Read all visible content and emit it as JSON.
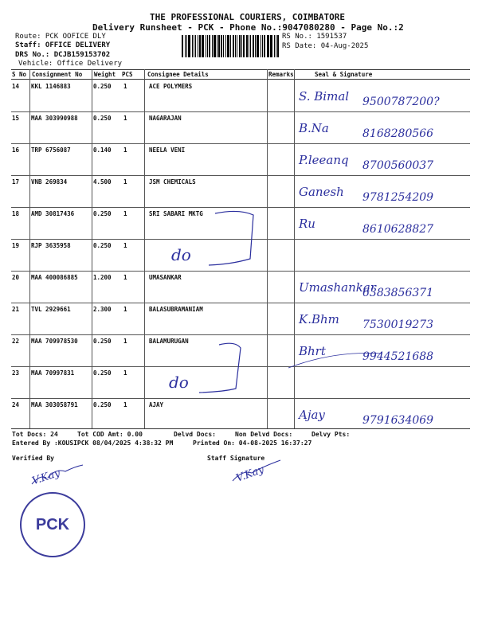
{
  "header": {
    "company": "THE PROFESSIONAL COURIERS, COIMBATORE",
    "subtitle": "Delivery Runsheet - PCK - Phone No.:9047080280 - Page No.:2",
    "route": "Route: PCK OOFICE DLY",
    "staff": "Staff: OFFICE DELIVERY",
    "drs_no": "DRS No.: DCJB159153702",
    "vehicle": "Vehicle: Office Delivery",
    "rs_no": "RS No.: 1591537",
    "rs_date": "RS Date: 04-Aug-2025"
  },
  "table": {
    "columns": [
      "S No",
      "Consignment No",
      "Weight",
      "PCS",
      "Consignee Details",
      "Remarks",
      "Seal & Signature"
    ],
    "rows": [
      {
        "sno": "14",
        "consignment": "KKL 1146883",
        "weight": "0.250",
        "pcs": "1",
        "consignee": "ACE POLYMERS",
        "sign": "S. Bimal",
        "phone": "9500787200?"
      },
      {
        "sno": "15",
        "consignment": "MAA 303990988",
        "weight": "0.250",
        "pcs": "1",
        "consignee": "NAGARAJAN",
        "sign": "B.Na",
        "phone": "8168280566"
      },
      {
        "sno": "16",
        "consignment": "TRP 6756087",
        "weight": "0.140",
        "pcs": "1",
        "consignee": "NEELA VENI",
        "sign": "P.leeanq",
        "phone": "8700560037"
      },
      {
        "sno": "17",
        "consignment": "VNB 269834",
        "weight": "4.500",
        "pcs": "1",
        "consignee": "JSM CHEMICALS",
        "sign": "Ganesh",
        "phone": "9781254209"
      },
      {
        "sno": "18",
        "consignment": "AMD 30817436",
        "weight": "0.250",
        "pcs": "1",
        "consignee": "SRI SABARI MKTG",
        "sign": "Ru",
        "phone": "8610628827"
      },
      {
        "sno": "19",
        "consignment": "RJP 3635958",
        "weight": "0.250",
        "pcs": "1",
        "consignee": "",
        "sign": "",
        "phone": ""
      },
      {
        "sno": "20",
        "consignment": "MAA 400086885",
        "weight": "1.200",
        "pcs": "1",
        "consignee": "UMASANKAR",
        "sign": "Umashankar",
        "phone": "6383856371"
      },
      {
        "sno": "21",
        "consignment": "TVL 2929661",
        "weight": "2.300",
        "pcs": "1",
        "consignee": "BALASUBRAMANIAM",
        "sign": "K.Bhm",
        "phone": "7530019273"
      },
      {
        "sno": "22",
        "consignment": "MAA 709978530",
        "weight": "0.250",
        "pcs": "1",
        "consignee": "BALAMURUGAN",
        "sign": "Bhrt",
        "phone": "9944521688"
      },
      {
        "sno": "23",
        "consignment": "MAA 70997831",
        "weight": "0.250",
        "pcs": "1",
        "consignee": "",
        "sign": "",
        "phone": ""
      },
      {
        "sno": "24",
        "consignment": "MAA 303058791",
        "weight": "0.250",
        "pcs": "1",
        "consignee": "AJAY",
        "sign": "Ajay",
        "phone": "9791634069"
      }
    ],
    "ditto_marks": [
      "do",
      "do"
    ]
  },
  "footer": {
    "tot_docs": "Tot Docs:  24",
    "tot_cod": "Tot COD Amt:     0.00",
    "delvd_docs": "Delvd Docs:",
    "non_delvd_docs": "Non Delvd Docs:",
    "delvy_pts": "Delvy Pts:",
    "entered_by": "Entered By :KOUSIPCK 08/04/2025 4:38:32 PM",
    "printed_on": "Printed On: 04-08-2025 16:37:27",
    "verified_by": "Verified By",
    "staff_signature": "Staff Signature",
    "verified_sign": "V.Kay",
    "staff_sign": "V.Kay"
  },
  "stamp": {
    "text": "PCK",
    "color": "#3c3c9c"
  },
  "ink_color": "#2b2f9e"
}
